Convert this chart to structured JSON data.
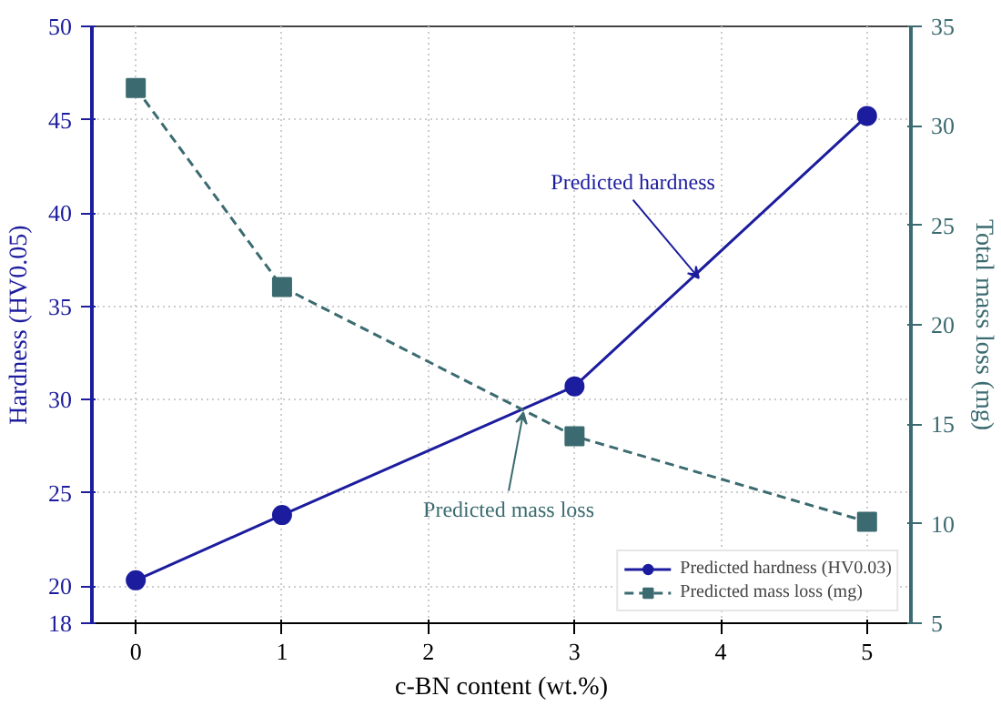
{
  "chart_data": {
    "type": "line",
    "xlabel": "c-BN content (wt.%)",
    "ylabel": "Hardness (HV0.05)",
    "y2label": "Total mass loss (mg)",
    "x": [
      0,
      1,
      3,
      5
    ],
    "series": [
      {
        "name": "Predicted hardness (HV0.03)",
        "color": "#1c1c9e",
        "values": [
          20.3,
          23.8,
          30.7,
          45.2
        ],
        "marker": "circle",
        "line_style": "solid"
      },
      {
        "name": "Predicted mass loss (mg)",
        "color": "#3b6b70",
        "values": [
          31.9,
          21.9,
          14.4,
          10.1
        ],
        "marker": "square",
        "line_style": "dashed",
        "axis": "y2"
      }
    ],
    "xlim": [
      -0.3,
      5.3
    ],
    "xticks": [
      0,
      1,
      2,
      3,
      4,
      5
    ],
    "ylim": [
      18,
      50
    ],
    "yticks": [
      18,
      20,
      25,
      30,
      35,
      40,
      45,
      50
    ],
    "y2lim": [
      5,
      35
    ],
    "y2ticks": [
      5,
      10,
      15,
      20,
      25,
      30,
      35
    ],
    "annotations": [
      {
        "text": "Predicted hardness",
        "x": 3.85,
        "y": 36.5
      },
      {
        "text": "Predicted mass loss",
        "x": 2.65,
        "y": 29.3
      }
    ],
    "grid": true,
    "legend": "bottom right"
  }
}
